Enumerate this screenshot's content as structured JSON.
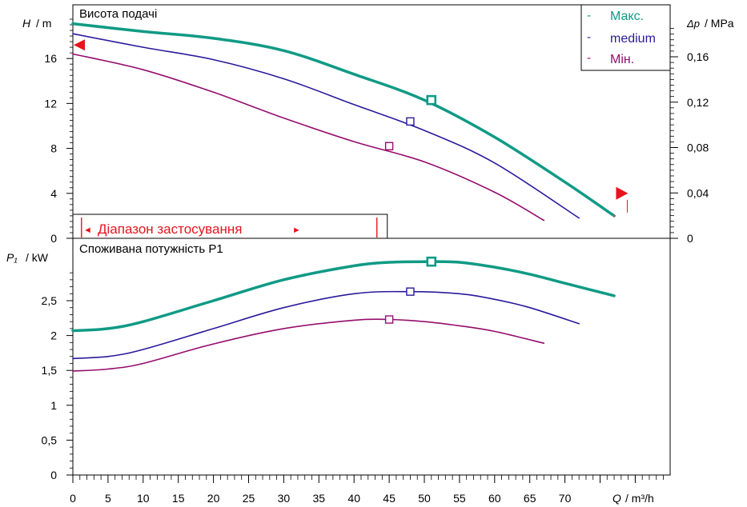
{
  "chart_data": [
    {
      "type": "line",
      "panel": "head",
      "title": "Висота подачі",
      "ylabel_symbol": "H",
      "ylabel_unit": "/ m",
      "y2label_symbol": "Δp",
      "y2label_unit": "/ MPa",
      "xlim": [
        0,
        85
      ],
      "ylim": [
        0,
        20
      ],
      "y2lim": [
        0,
        0.2
      ],
      "yticks": [
        0,
        4,
        8,
        12,
        16
      ],
      "ytick_labels": [
        "0",
        "4",
        "8",
        "12",
        "16"
      ],
      "y2ticks": [
        0,
        0.04,
        0.08,
        0.12,
        0.16
      ],
      "y2tick_labels": [
        "0",
        "0,04",
        "0,08",
        "0,12",
        "0,16"
      ],
      "legend_position": "top-right",
      "series": [
        {
          "name": "Макс.",
          "color": "#109a85",
          "width": 3.5,
          "x": [
            0,
            10,
            20,
            30,
            40,
            50,
            60,
            70,
            77
          ],
          "y": [
            19.1,
            18.4,
            17.8,
            16.7,
            14.6,
            12.3,
            9.0,
            5.0,
            2.0
          ],
          "marker": {
            "x": 51,
            "y": 12.3
          }
        },
        {
          "name": "medium",
          "color": "#2a1a9c",
          "width": 1.6,
          "x": [
            0,
            10,
            20,
            30,
            40,
            50,
            60,
            72
          ],
          "y": [
            18.2,
            17.0,
            15.9,
            14.2,
            11.9,
            9.6,
            6.7,
            1.8
          ],
          "marker": {
            "x": 48,
            "y": 10.4
          }
        },
        {
          "name": "Мін.",
          "color": "#950d6d",
          "width": 1.6,
          "x": [
            0,
            10,
            20,
            30,
            40,
            50,
            60,
            67
          ],
          "y": [
            16.4,
            15.0,
            13.0,
            10.7,
            8.6,
            6.8,
            4.1,
            1.6
          ],
          "marker": {
            "x": 45,
            "y": 8.2
          }
        }
      ],
      "application_range": {
        "label": "Діапазон застосування",
        "left_arrow": "◄",
        "right_arrow": "►",
        "x_start": 1,
        "x_end": 33,
        "color": "#e6141e"
      },
      "operating_markers": {
        "left_y": 17.2,
        "right_x": 77.5,
        "right_y": 4.0,
        "color": "#e6141e"
      }
    },
    {
      "type": "line",
      "panel": "power",
      "title": "Споживана потужність P1",
      "ylabel_symbol": "P₁",
      "ylabel_unit": "/ kW",
      "xlabel_symbol": "Q",
      "xlabel_unit": "/ m³/h",
      "xlim": [
        0,
        85
      ],
      "ylim": [
        0,
        3.1
      ],
      "xticks": [
        0,
        5,
        10,
        15,
        20,
        25,
        30,
        35,
        40,
        45,
        50,
        55,
        60,
        65,
        70
      ],
      "xtick_labels": [
        "0",
        "5",
        "10",
        "15",
        "20",
        "25",
        "30",
        "35",
        "40",
        "45",
        "50",
        "55",
        "60",
        "65",
        "70"
      ],
      "yticks": [
        0,
        0.5,
        1,
        1.5,
        2,
        2.5
      ],
      "ytick_labels": [
        "0",
        "0,5",
        "1",
        "1,5",
        "2",
        "2,5"
      ],
      "series": [
        {
          "name": "Макс.",
          "color": "#109a85",
          "width": 3.5,
          "x": [
            0,
            5,
            10,
            20,
            30,
            40,
            45,
            50,
            55,
            60,
            65,
            70,
            77
          ],
          "y": [
            2.07,
            2.1,
            2.2,
            2.5,
            2.8,
            3.0,
            3.05,
            3.06,
            3.05,
            2.98,
            2.88,
            2.75,
            2.57
          ],
          "marker": {
            "x": 51,
            "y": 3.06
          }
        },
        {
          "name": "medium",
          "color": "#2a1a9c",
          "width": 1.6,
          "x": [
            0,
            5,
            10,
            20,
            30,
            40,
            48,
            55,
            60,
            65,
            72
          ],
          "y": [
            1.67,
            1.7,
            1.8,
            2.1,
            2.4,
            2.6,
            2.63,
            2.6,
            2.52,
            2.4,
            2.17
          ],
          "marker": {
            "x": 48,
            "y": 2.63
          }
        },
        {
          "name": "Мін.",
          "color": "#950d6d",
          "width": 1.6,
          "x": [
            0,
            5,
            10,
            20,
            30,
            40,
            45,
            50,
            55,
            60,
            67
          ],
          "y": [
            1.49,
            1.52,
            1.6,
            1.88,
            2.1,
            2.22,
            2.23,
            2.2,
            2.14,
            2.06,
            1.89
          ],
          "marker": {
            "x": 45,
            "y": 2.23
          }
        }
      ]
    }
  ],
  "legend": {
    "items": [
      {
        "dash": "-",
        "label": "Макс.",
        "color": "#109a85"
      },
      {
        "dash": "-",
        "label": "medium",
        "color": "#2a1a9c"
      },
      {
        "dash": "-",
        "label": "Мін.",
        "color": "#950d6d"
      }
    ]
  }
}
